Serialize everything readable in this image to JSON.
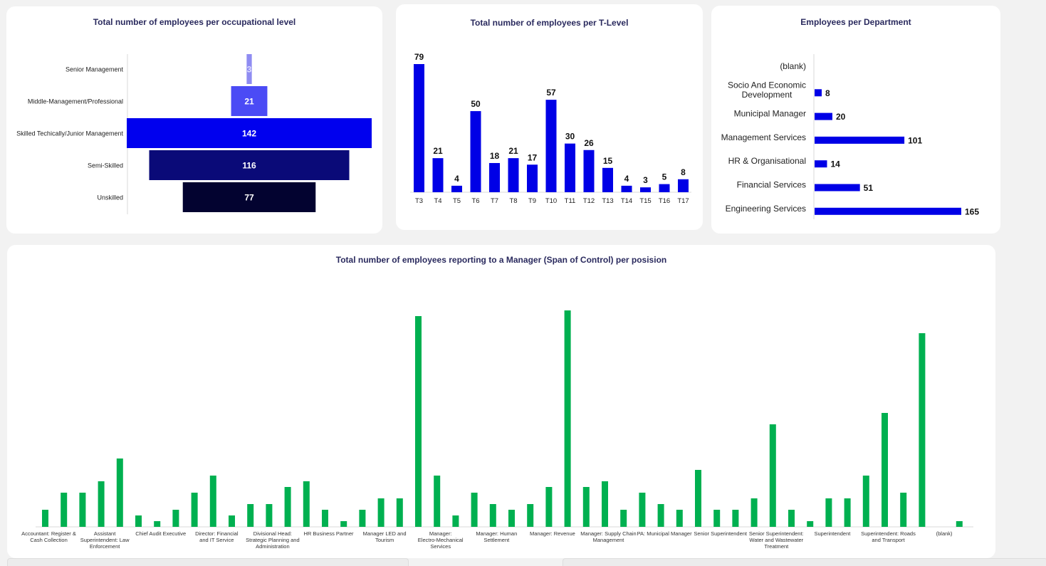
{
  "colors": {
    "accent_blue": "#0000e6",
    "green": "#00b050",
    "title": "#2a2a5e",
    "funnel": [
      "#8f8cf2",
      "#4b4bf5",
      "#0000ee",
      "#0a0a78",
      "#030330"
    ]
  },
  "panels": {
    "occupational_title": "Total number of employees per occupational level",
    "tlevel_title": "Total number of employees per T-Level",
    "department_title": "Employees per Department",
    "span_title": "Total number of employees reporting to a Manager (Span of Control) per posision"
  },
  "chart_data": [
    {
      "id": "occupational",
      "type": "bar",
      "orientation": "funnel",
      "title": "Total number of employees per occupational level",
      "categories": [
        "Senior Management",
        "Middle-Management/Professional",
        "Skilled Techically/Junior Management",
        "Semi-Skilled",
        "Unskilled"
      ],
      "values": [
        3,
        21,
        142,
        116,
        77
      ]
    },
    {
      "id": "tlevel",
      "type": "bar",
      "title": "Total number of employees per T-Level",
      "categories": [
        "T3",
        "T4",
        "T5",
        "T6",
        "T7",
        "T8",
        "T9",
        "T10",
        "T11",
        "T12",
        "T13",
        "T14",
        "T15",
        "T16",
        "T17"
      ],
      "values": [
        79,
        21,
        4,
        50,
        18,
        21,
        17,
        57,
        30,
        26,
        15,
        4,
        3,
        5,
        8
      ],
      "ylim": [
        0,
        79
      ]
    },
    {
      "id": "department",
      "type": "bar",
      "orientation": "horizontal",
      "title": "Employees per Department",
      "categories": [
        "(blank)",
        "Socio And Economic Development",
        "Municipal Manager",
        "Management Services",
        "HR & Organisational",
        "Financial Services",
        "Engineering Services"
      ],
      "values": [
        null,
        8,
        20,
        101,
        14,
        51,
        165
      ],
      "xlim": [
        0,
        165
      ]
    },
    {
      "id": "span",
      "type": "bar",
      "title": "Total number of employees reporting to a Manager (Span of Control) per posision",
      "tick_labels": [
        {
          "index": 0,
          "label": "Accountant: Register & Cash Collection"
        },
        {
          "index": 3,
          "label": "Assistant Superintendent: Law Enforcement"
        },
        {
          "index": 6,
          "label": "Chief Audit Executive"
        },
        {
          "index": 9,
          "label": "Director: Financial and IT Service"
        },
        {
          "index": 12,
          "label": "Divisional Head: Strategic Planning and Administration"
        },
        {
          "index": 15,
          "label": "HR Business Partner"
        },
        {
          "index": 18,
          "label": "Manager LED and Tourism"
        },
        {
          "index": 21,
          "label": "Manager: Electro-Mechanical Services"
        },
        {
          "index": 24,
          "label": "Manager: Human Settlement"
        },
        {
          "index": 27,
          "label": "Manager: Revenue"
        },
        {
          "index": 30,
          "label": "Manager: Supply Chain Management"
        },
        {
          "index": 33,
          "label": "PA: Municipal Manager"
        },
        {
          "index": 36,
          "label": "Senior Superintendent"
        },
        {
          "index": 39,
          "label": "Senior Superintendent: Water and Wastewater Treatment"
        },
        {
          "index": 42,
          "label": "Superintendent"
        },
        {
          "index": 45,
          "label": "Superintendent: Roads and Transport"
        },
        {
          "index": 48,
          "label": "(blank)"
        }
      ],
      "values": [
        3,
        6,
        6,
        8,
        12,
        2,
        1,
        3,
        6,
        9,
        2,
        4,
        4,
        7,
        8,
        3,
        1,
        3,
        5,
        5,
        37,
        9,
        2,
        6,
        4,
        3,
        4,
        7,
        38,
        7,
        8,
        3,
        6,
        4,
        3,
        10,
        3,
        3,
        5,
        18,
        3,
        1,
        5,
        5,
        9,
        20,
        6,
        34,
        0,
        1
      ],
      "ylim": [
        0,
        38
      ]
    }
  ]
}
